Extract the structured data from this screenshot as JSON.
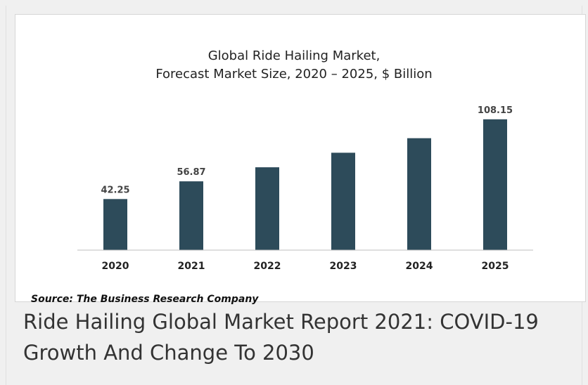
{
  "chart_data": {
    "type": "bar",
    "title_lines": [
      "Global Ride Hailing Market,",
      "Forecast Market Size, 2020 – 2025, $ Billion"
    ],
    "categories": [
      "2020",
      "2021",
      "2022",
      "2023",
      "2024",
      "2025"
    ],
    "values": [
      42.25,
      56.87,
      68.5,
      80.5,
      92.5,
      108.15
    ],
    "data_labels": [
      "42.25",
      "56.87",
      "",
      "",
      "",
      "108.15"
    ],
    "xlabel": "",
    "ylabel": "",
    "ylim": [
      0,
      115
    ],
    "grid": false,
    "bar_color": "#2d4b5a"
  },
  "source_text": "Source: The Business Research Company",
  "caption": "Ride Hailing Global Market Report 2021: COVID-19 Growth And Change To 2030"
}
